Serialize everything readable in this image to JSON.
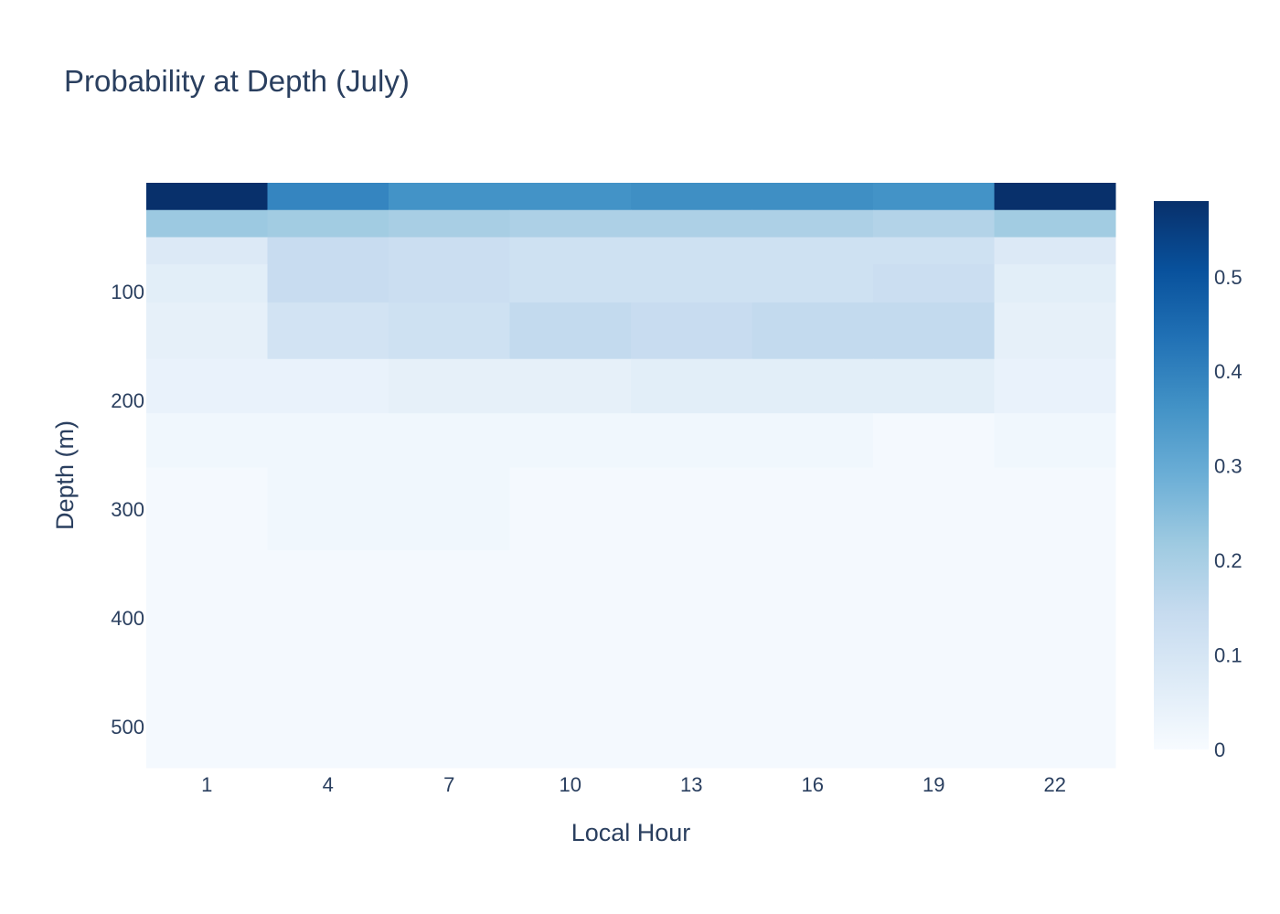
{
  "chart_data": {
    "type": "heatmap",
    "title": "Probability at Depth (July)",
    "xlabel": "Local Hour",
    "ylabel": "Depth (m)",
    "x": [
      1,
      4,
      7,
      10,
      13,
      16,
      19,
      22
    ],
    "x_ticks": [
      "1",
      "4",
      "7",
      "10",
      "13",
      "16",
      "19",
      "22"
    ],
    "y_bins": [
      {
        "from": 0,
        "to": 25
      },
      {
        "from": 25,
        "to": 50
      },
      {
        "from": 50,
        "to": 75
      },
      {
        "from": 75,
        "to": 110
      },
      {
        "from": 110,
        "to": 162
      },
      {
        "from": 162,
        "to": 212
      },
      {
        "from": 212,
        "to": 262
      },
      {
        "from": 262,
        "to": 338
      },
      {
        "from": 338,
        "to": 538
      }
    ],
    "y_ticks": [
      100,
      200,
      300,
      400,
      500
    ],
    "ylim": [
      538,
      0
    ],
    "z": [
      [
        0.58,
        0.39,
        0.36,
        0.36,
        0.37,
        0.37,
        0.36,
        0.58
      ],
      [
        0.22,
        0.21,
        0.2,
        0.19,
        0.19,
        0.19,
        0.18,
        0.21
      ],
      [
        0.08,
        0.14,
        0.13,
        0.12,
        0.12,
        0.12,
        0.12,
        0.08
      ],
      [
        0.06,
        0.14,
        0.13,
        0.12,
        0.12,
        0.12,
        0.13,
        0.06
      ],
      [
        0.05,
        0.11,
        0.12,
        0.15,
        0.14,
        0.15,
        0.15,
        0.05
      ],
      [
        0.04,
        0.04,
        0.05,
        0.05,
        0.06,
        0.06,
        0.06,
        0.04
      ],
      [
        0.02,
        0.02,
        0.02,
        0.02,
        0.02,
        0.02,
        0.01,
        0.02
      ],
      [
        0.01,
        0.02,
        0.02,
        0.01,
        0.01,
        0.01,
        0.01,
        0.01
      ],
      [
        0.01,
        0.01,
        0.01,
        0.01,
        0.01,
        0.01,
        0.01,
        0.01
      ]
    ],
    "colorscale": "Blues",
    "colorbar": {
      "min": 0,
      "max": 0.58,
      "ticks": [
        "0",
        "0.1",
        "0.2",
        "0.3",
        "0.4",
        "0.5"
      ]
    }
  }
}
